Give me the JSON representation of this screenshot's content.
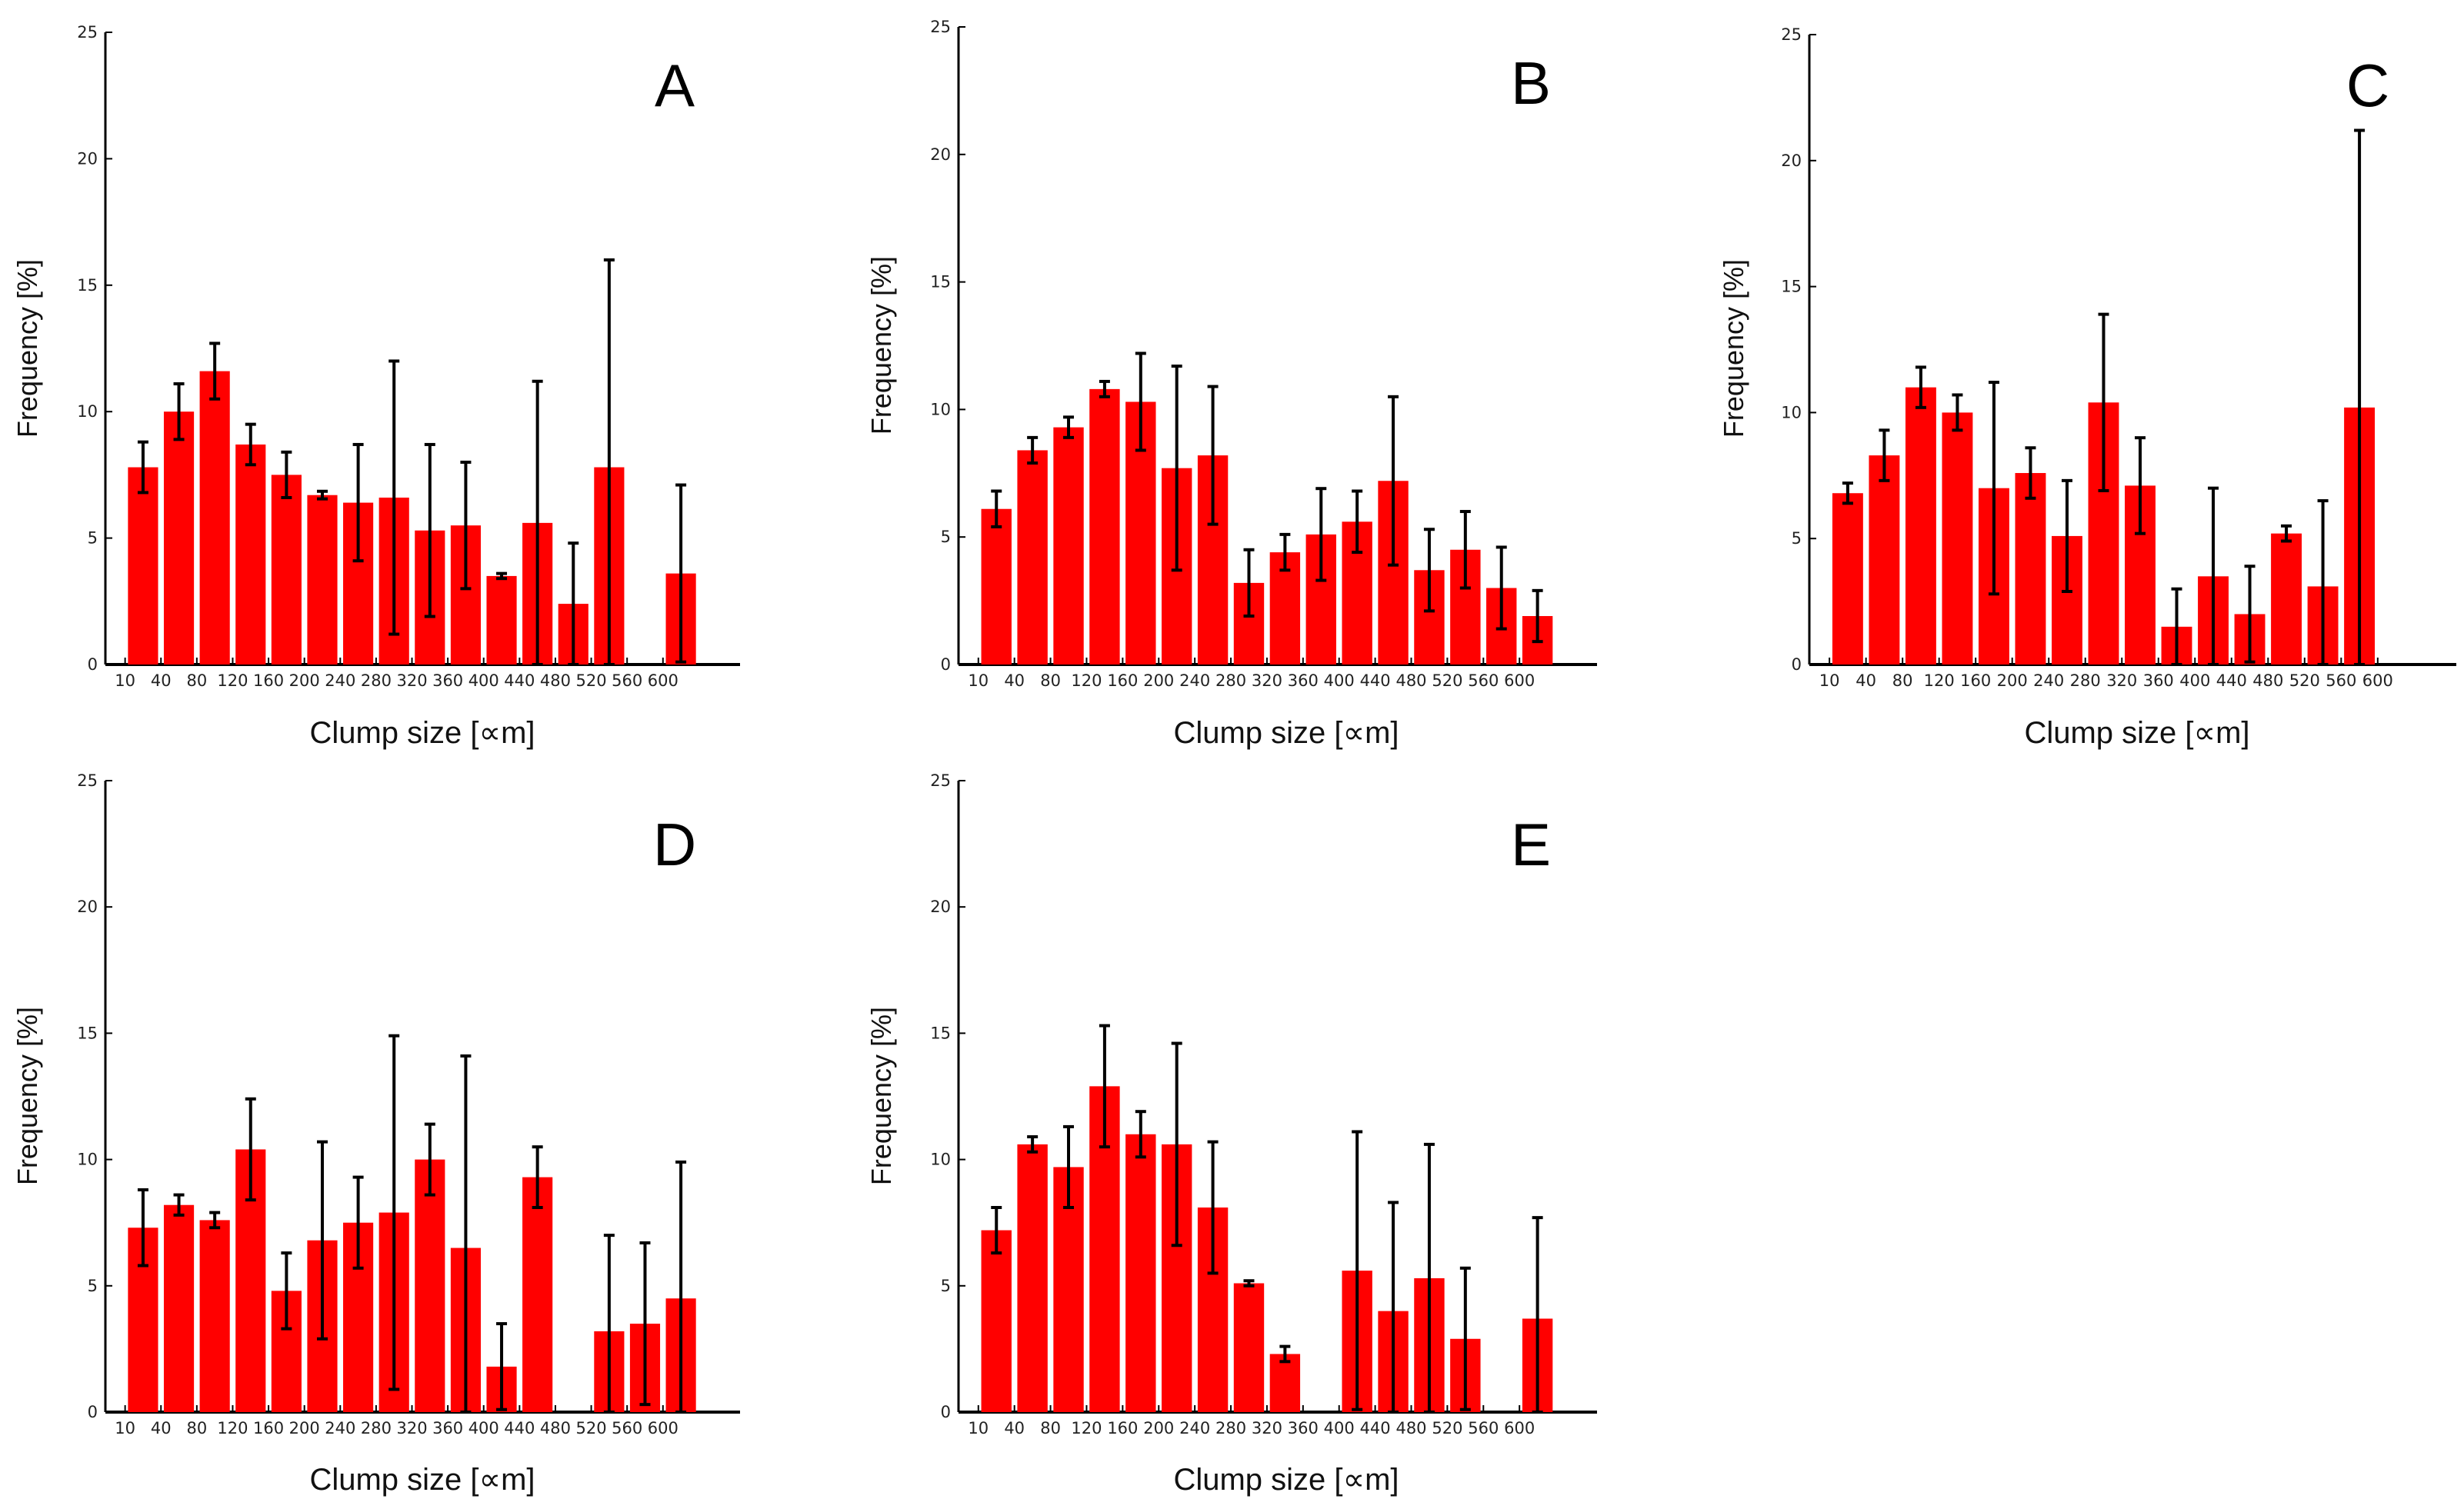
{
  "chart_data": [
    {
      "type": "bar",
      "title": "",
      "panel_label": "A",
      "xlabel": "Clump size [∝m]",
      "ylabel": "Frequency [%]",
      "ylim": [
        0,
        25
      ],
      "yticks": [
        "0",
        "5",
        "10",
        "15",
        "20",
        "25"
      ],
      "xtick_labels": [
        "10",
        "40",
        "80",
        "120",
        "160",
        "200",
        "240",
        "280",
        "320",
        "360",
        "400",
        "440",
        "480",
        "520",
        "560",
        "600"
      ],
      "values": [
        7.8,
        10.0,
        11.6,
        8.7,
        7.5,
        6.7,
        6.4,
        6.6,
        5.3,
        5.5,
        3.5,
        5.6,
        2.4,
        7.8,
        0,
        3.6
      ],
      "error": [
        1.0,
        1.1,
        1.1,
        0.8,
        0.9,
        0.15,
        2.3,
        5.4,
        3.4,
        2.5,
        0.1,
        5.6,
        2.4,
        8.2,
        0,
        3.5
      ],
      "color": "#ff0000"
    },
    {
      "type": "bar",
      "title": "",
      "panel_label": "B",
      "xlabel": "Clump size [∝m]",
      "ylabel": "Frequency [%]",
      "ylim": [
        0,
        25
      ],
      "yticks": [
        "0",
        "5",
        "10",
        "15",
        "20",
        "25"
      ],
      "xtick_labels": [
        "10",
        "40",
        "80",
        "120",
        "160",
        "200",
        "240",
        "280",
        "320",
        "360",
        "400",
        "440",
        "480",
        "520",
        "560",
        "600"
      ],
      "values": [
        6.1,
        8.4,
        9.3,
        10.8,
        10.3,
        7.7,
        8.2,
        3.2,
        4.4,
        5.1,
        5.6,
        7.2,
        3.7,
        4.5,
        3.0,
        1.9
      ],
      "error": [
        0.7,
        0.5,
        0.4,
        0.3,
        1.9,
        4.0,
        2.7,
        1.3,
        0.7,
        1.8,
        1.2,
        3.3,
        1.6,
        1.5,
        1.6,
        1.0
      ],
      "color": "#ff0000"
    },
    {
      "type": "bar",
      "title": "",
      "panel_label": "C",
      "xlabel": "Clump size [∝m]",
      "ylabel": "Frequency [%]",
      "ylim": [
        0,
        25
      ],
      "yticks": [
        "0",
        "5",
        "10",
        "15",
        "20",
        "25"
      ],
      "xtick_labels": [
        "10",
        "40",
        "80",
        "120",
        "160",
        "200",
        "240",
        "280",
        "320",
        "360",
        "400",
        "440",
        "480",
        "520",
        "560",
        "600"
      ],
      "values": [
        6.8,
        8.3,
        11.0,
        10.0,
        7.0,
        7.6,
        5.1,
        10.4,
        7.1,
        1.5,
        3.5,
        2.0,
        5.2,
        3.1,
        10.2,
        0
      ],
      "error": [
        0.4,
        1.0,
        0.8,
        0.7,
        4.2,
        1.0,
        2.2,
        3.5,
        1.9,
        1.5,
        3.5,
        1.9,
        0.3,
        3.4,
        11.0,
        0
      ],
      "color": "#ff0000"
    },
    {
      "type": "bar",
      "title": "",
      "panel_label": "D",
      "xlabel": "Clump size [∝m]",
      "ylabel": "Frequency [%]",
      "ylim": [
        0,
        25
      ],
      "yticks": [
        "0",
        "5",
        "10",
        "15",
        "20",
        "25"
      ],
      "xtick_labels": [
        "10",
        "40",
        "80",
        "120",
        "160",
        "200",
        "240",
        "280",
        "320",
        "360",
        "400",
        "440",
        "480",
        "520",
        "560",
        "600"
      ],
      "values": [
        7.3,
        8.2,
        7.6,
        10.4,
        4.8,
        6.8,
        7.5,
        7.9,
        10.0,
        6.5,
        1.8,
        9.3,
        0,
        3.2,
        3.5,
        4.5
      ],
      "error": [
        1.5,
        0.4,
        0.3,
        2.0,
        1.5,
        3.9,
        1.8,
        7.0,
        1.4,
        7.6,
        1.7,
        1.2,
        0,
        3.8,
        3.2,
        5.4
      ],
      "color": "#ff0000"
    },
    {
      "type": "bar",
      "title": "",
      "panel_label": "E",
      "xlabel": "Clump size [∝m]",
      "ylabel": "Frequency [%]",
      "ylim": [
        0,
        25
      ],
      "yticks": [
        "0",
        "5",
        "10",
        "15",
        "20",
        "25"
      ],
      "xtick_labels": [
        "10",
        "40",
        "80",
        "120",
        "160",
        "200",
        "240",
        "280",
        "320",
        "360",
        "400",
        "440",
        "480",
        "520",
        "560",
        "600"
      ],
      "values": [
        7.2,
        10.6,
        9.7,
        12.9,
        11.0,
        10.6,
        8.1,
        5.1,
        2.3,
        0,
        5.6,
        4.0,
        5.3,
        2.9,
        0,
        3.7
      ],
      "error": [
        0.9,
        0.3,
        1.6,
        2.4,
        0.9,
        4.0,
        2.6,
        0.1,
        0.3,
        0,
        5.5,
        4.3,
        5.3,
        2.8,
        0,
        4.0
      ],
      "color": "#ff0000"
    }
  ]
}
